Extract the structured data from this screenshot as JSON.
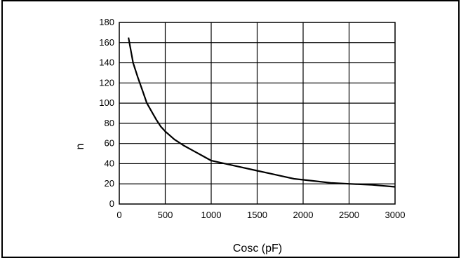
{
  "chart_data": {
    "type": "line",
    "title": "",
    "xlabel": "Cosc (pF)",
    "ylabel": "n",
    "xlim": [
      0,
      3000
    ],
    "ylim": [
      0,
      180
    ],
    "grid": true,
    "xticks": [
      0,
      500,
      1000,
      1500,
      2000,
      2500,
      3000
    ],
    "yticks": [
      0,
      20,
      40,
      60,
      80,
      100,
      120,
      140,
      160,
      180
    ],
    "series": [
      {
        "x": [
          100,
          150,
          200,
          250,
          300,
          350,
          400,
          450,
          500,
          600,
          700,
          800,
          900,
          1000,
          1250,
          1500,
          1750,
          1900,
          2100,
          2300,
          2500,
          2750,
          3000
        ],
        "y": [
          165,
          140,
          126,
          113,
          100,
          92,
          84,
          77,
          72,
          64,
          58,
          53,
          48,
          43,
          38,
          33,
          28,
          25,
          23,
          21,
          20,
          19,
          17
        ]
      }
    ]
  }
}
